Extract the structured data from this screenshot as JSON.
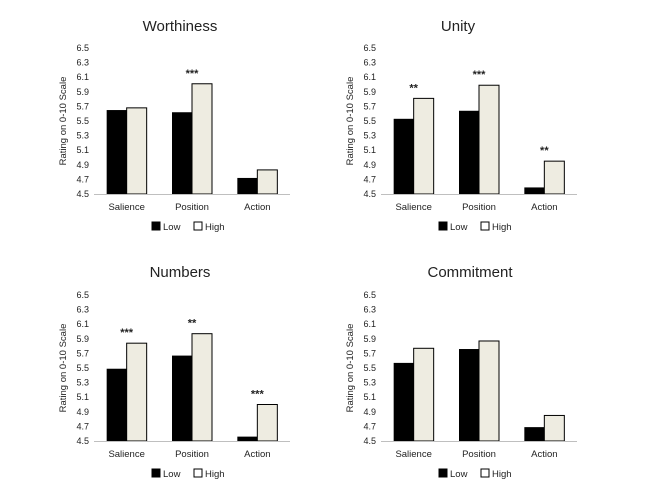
{
  "colors": {
    "low": "#000000",
    "high": "#eeece1",
    "high_stroke": "#000000",
    "axis": "#bfbfbf"
  },
  "chart_data": [
    {
      "type": "bar",
      "title": "Worthiness",
      "ylabel": "Rating on 0-10 Scale",
      "ylim": [
        4.5,
        6.5
      ],
      "yticks": [
        "4.5",
        "4.7",
        "4.9",
        "5.1",
        "5.3",
        "5.5",
        "5.7",
        "5.9",
        "6.1",
        "6.3",
        "6.5"
      ],
      "categories": [
        "Salience",
        "Position",
        "Action"
      ],
      "series": [
        {
          "name": "Low",
          "values": [
            5.65,
            5.62,
            4.72
          ]
        },
        {
          "name": "High",
          "values": [
            5.68,
            6.01,
            4.83
          ]
        }
      ],
      "annotations": [
        "",
        "***",
        ""
      ],
      "legend": "bottom"
    },
    {
      "type": "bar",
      "title": "Unity",
      "ylabel": "Rating on 0-10 Scale",
      "ylim": [
        4.5,
        6.5
      ],
      "yticks": [
        "4.5",
        "4.7",
        "4.9",
        "5.1",
        "5.3",
        "5.5",
        "5.7",
        "5.9",
        "6.1",
        "6.3",
        "6.5"
      ],
      "categories": [
        "Salience",
        "Position",
        "Action"
      ],
      "series": [
        {
          "name": "Low",
          "values": [
            5.53,
            5.64,
            4.59
          ]
        },
        {
          "name": "High",
          "values": [
            5.81,
            5.99,
            4.95
          ]
        }
      ],
      "annotations": [
        "**",
        "***",
        "**"
      ],
      "legend": "bottom"
    },
    {
      "type": "bar",
      "title": "Numbers",
      "ylabel": "Rating on 0-10 Scale",
      "ylim": [
        4.5,
        6.5
      ],
      "yticks": [
        "4.5",
        "4.7",
        "4.9",
        "5.1",
        "5.3",
        "5.5",
        "5.7",
        "5.9",
        "6.1",
        "6.3",
        "6.5"
      ],
      "categories": [
        "Salience",
        "Position",
        "Action"
      ],
      "series": [
        {
          "name": "Low",
          "values": [
            5.49,
            5.67,
            4.56
          ]
        },
        {
          "name": "High",
          "values": [
            5.84,
            5.97,
            5.0
          ]
        }
      ],
      "annotations": [
        "***",
        "**",
        "***"
      ],
      "legend": "bottom"
    },
    {
      "type": "bar",
      "title": "Commitment",
      "ylabel": "Rating on 0-10 Scale",
      "ylim": [
        4.5,
        6.5
      ],
      "yticks": [
        "4.5",
        "4.7",
        "4.9",
        "5.1",
        "5.3",
        "5.5",
        "5.7",
        "5.9",
        "6.1",
        "6.3",
        "6.5"
      ],
      "categories": [
        "Salience",
        "Position",
        "Action"
      ],
      "series": [
        {
          "name": "Low",
          "values": [
            5.57,
            5.76,
            4.69
          ]
        },
        {
          "name": "High",
          "values": [
            5.77,
            5.87,
            4.85
          ]
        }
      ],
      "annotations": [
        "",
        "",
        ""
      ],
      "legend": "bottom"
    }
  ]
}
